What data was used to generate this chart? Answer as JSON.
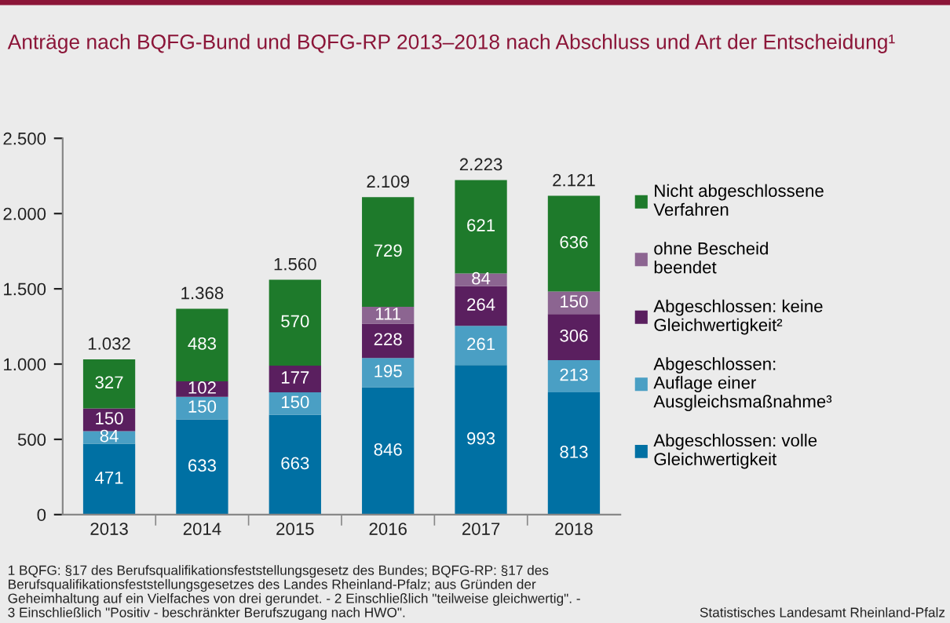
{
  "chart_data": {
    "type": "bar",
    "stacked": true,
    "title": "Anträge nach BQFG-Bund und BQFG-RP 2013–2018 nach Abschluss und Art der Entscheidung¹",
    "categories": [
      "2013",
      "2014",
      "2015",
      "2016",
      "2017",
      "2018"
    ],
    "series": [
      {
        "name": "Abgeschlossen: volle\nGleichwertigkeit",
        "color": "#0070a3",
        "values": [
          471,
          633,
          663,
          846,
          993,
          813
        ]
      },
      {
        "name": "Abgeschlossen:\nAuflage einer\nAusgleichsmaßnahme³",
        "color": "#4a9fc4",
        "values": [
          84,
          150,
          150,
          195,
          261,
          213
        ]
      },
      {
        "name": "Abgeschlossen: keine\nGleichwertigkeit²",
        "color": "#5a1f5f",
        "values": [
          150,
          102,
          177,
          228,
          264,
          306
        ]
      },
      {
        "name": "ohne Bescheid\nbeendet",
        "color": "#8c6591",
        "values": [
          null,
          null,
          null,
          111,
          84,
          150
        ]
      },
      {
        "name": "Nicht abgeschlossene\nVerfahren",
        "color": "#1e7a2b",
        "values": [
          327,
          483,
          570,
          729,
          621,
          636
        ]
      }
    ],
    "data_labels": true,
    "totals": [
      "1.032",
      "1.368",
      "1.560",
      "2.109",
      "2.223",
      "2.121"
    ],
    "ylim": [
      0,
      2500
    ],
    "yticks": [
      0,
      500,
      {
        "value": 1000,
        "label": "1.000"
      },
      {
        "value": 1500,
        "label": "1.500"
      },
      {
        "value": 2000,
        "label": "2.000"
      },
      {
        "value": 2500,
        "label": "2.500"
      }
    ],
    "grid": false,
    "legend": "right",
    "annotations": [
      "1 BQFG: §17 des Berufsqualifikationsfeststellungsgesetz des Bundes; BQFG-RP: §17 des\nBerufsqualifikationsfeststellungsgesetzes des Landes Rheinland-Pfalz; aus Gründen der\nGeheimhaltung auf ein Vielfaches von drei gerundet. - 2 Einschließlich \"teilweise gleichwertig\". -\n3 Einschließlich \"Positiv - beschränkter Berufszugang nach HWO\".",
      "Statistisches Landesamt Rheinland-Pfalz"
    ]
  }
}
